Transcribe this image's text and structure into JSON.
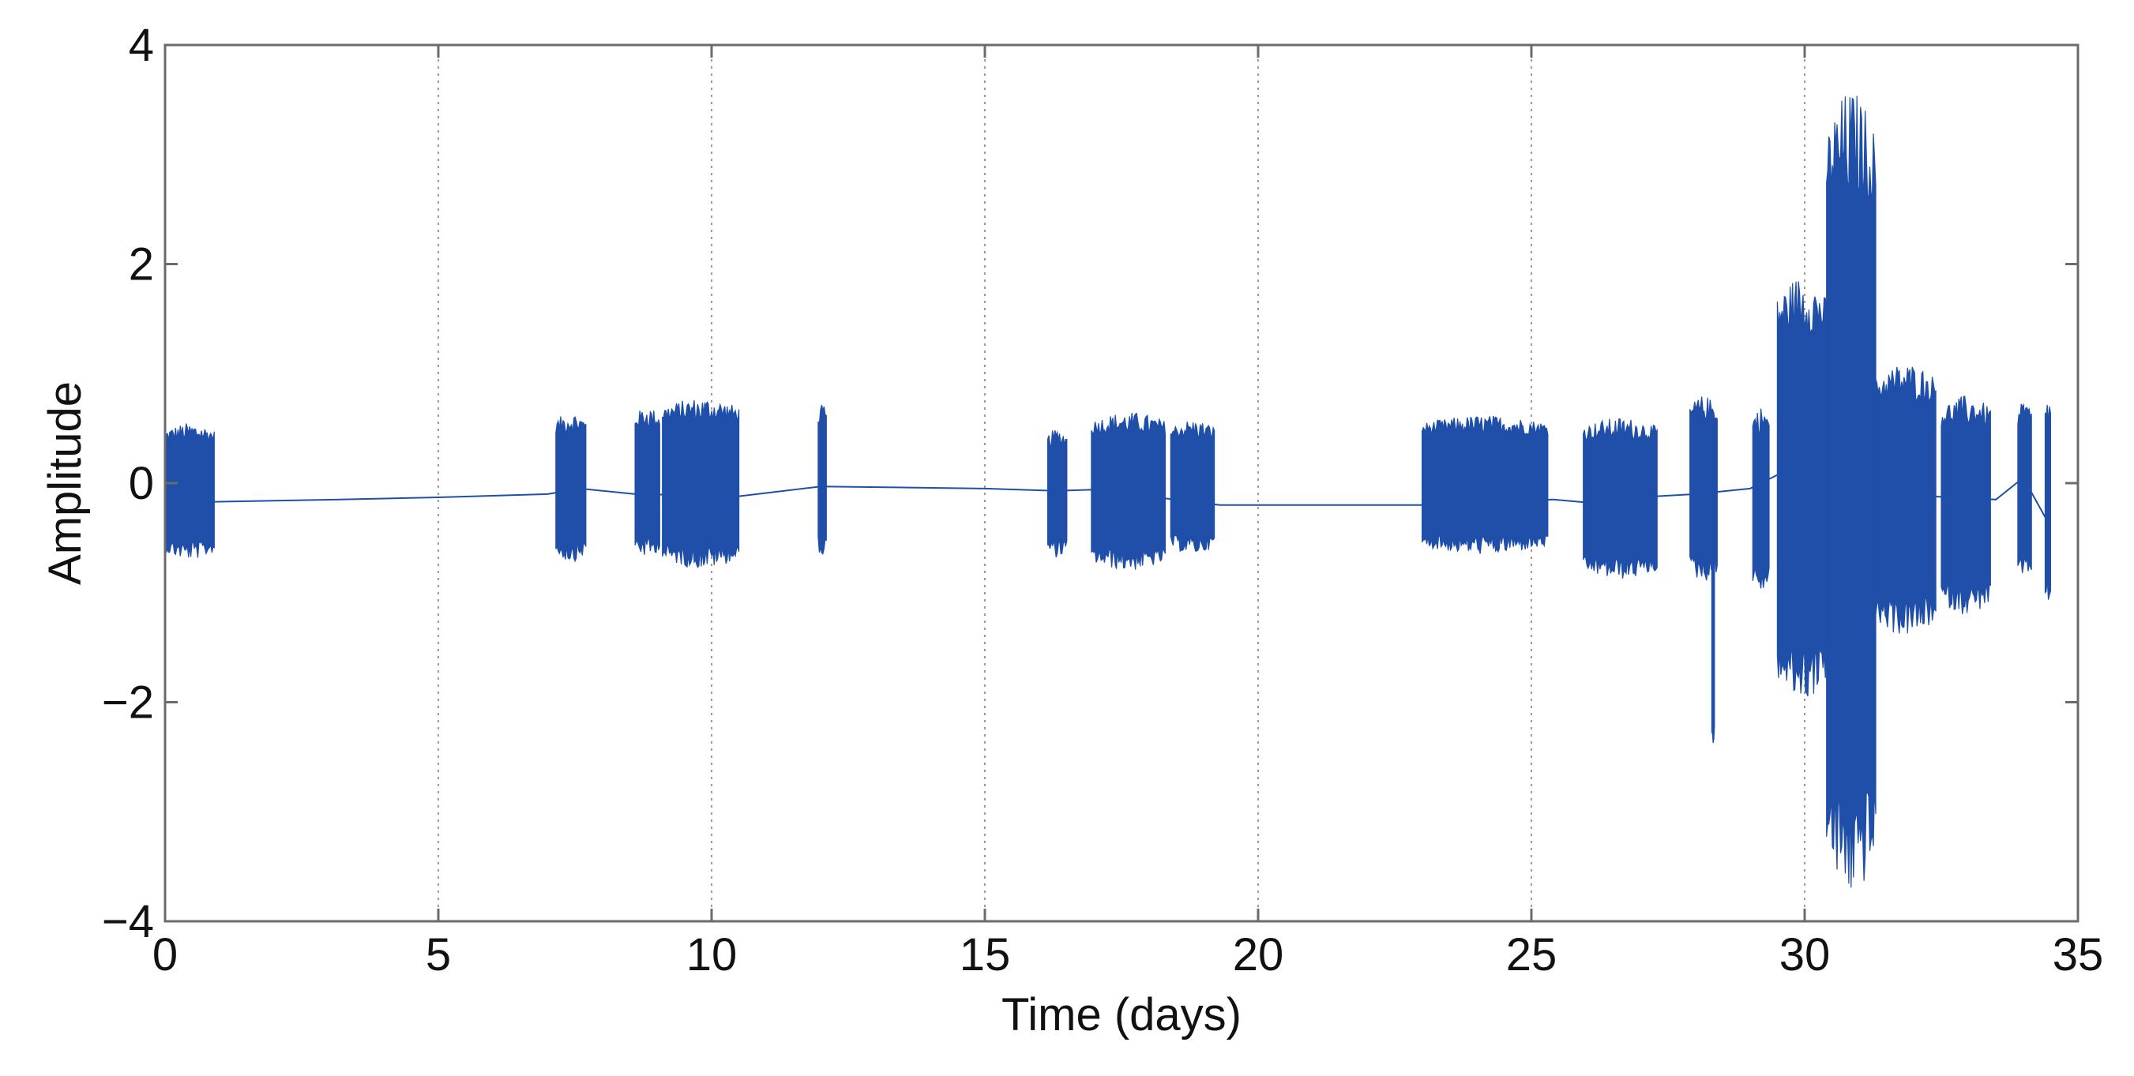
{
  "chart_data": {
    "type": "line",
    "xlabel": "Time (days)",
    "ylabel": "Amplitude",
    "xlim": [
      0,
      35
    ],
    "ylim": [
      -4,
      4
    ],
    "xticks": [
      0,
      5,
      10,
      15,
      20,
      25,
      30,
      35
    ],
    "yticks": [
      -4,
      -2,
      0,
      2,
      4
    ],
    "xtick_labels": [
      "0",
      "5",
      "10",
      "15",
      "20",
      "25",
      "30",
      "35"
    ],
    "ytick_labels": [
      "−4",
      "−2",
      "0",
      "2",
      "4"
    ],
    "grid": "vertical dotted",
    "series_color": "#1f4fa8",
    "series": [
      {
        "baseline": [
          [
            0.0,
            -0.17
          ],
          [
            0.9,
            -0.17
          ],
          [
            3.2,
            -0.15
          ],
          [
            5.0,
            -0.13
          ],
          [
            7.0,
            -0.1
          ],
          [
            7.6,
            -0.05
          ],
          [
            8.6,
            -0.1
          ],
          [
            10.5,
            -0.12
          ],
          [
            12.0,
            -0.03
          ],
          [
            15.0,
            -0.05
          ],
          [
            16.3,
            -0.07
          ],
          [
            17.0,
            -0.06
          ],
          [
            19.3,
            -0.2
          ],
          [
            23.0,
            -0.2
          ],
          [
            25.4,
            -0.15
          ],
          [
            26.1,
            -0.18
          ],
          [
            27.3,
            -0.12
          ],
          [
            28.0,
            -0.1
          ],
          [
            29.0,
            -0.05
          ],
          [
            30.0,
            0.2
          ],
          [
            31.5,
            -0.1
          ],
          [
            33.5,
            -0.15
          ],
          [
            34.0,
            0.05
          ],
          [
            34.5,
            -0.4
          ]
        ],
        "bursts": [
          {
            "start": 0.0,
            "end": 0.9,
            "max": 0.55,
            "min": -0.7
          },
          {
            "start": 7.15,
            "end": 7.7,
            "max": 0.65,
            "min": -0.72
          },
          {
            "start": 8.6,
            "end": 9.05,
            "max": 0.7,
            "min": -0.68
          },
          {
            "start": 9.1,
            "end": 10.5,
            "max": 0.78,
            "min": -0.78
          },
          {
            "start": 11.95,
            "end": 12.1,
            "max": 0.72,
            "min": -0.68
          },
          {
            "start": 16.15,
            "end": 16.5,
            "max": 0.5,
            "min": -0.68
          },
          {
            "start": 16.95,
            "end": 18.3,
            "max": 0.65,
            "min": -0.8
          },
          {
            "start": 18.4,
            "end": 19.2,
            "max": 0.58,
            "min": -0.65
          },
          {
            "start": 23.0,
            "end": 25.3,
            "max": 0.62,
            "min": -0.65
          },
          {
            "start": 25.95,
            "end": 27.3,
            "max": 0.6,
            "min": -0.88
          },
          {
            "start": 27.9,
            "end": 28.4,
            "max": 0.8,
            "min": -0.9
          },
          {
            "start": 28.3,
            "end": 28.35,
            "max": 0.2,
            "min": -2.5
          },
          {
            "start": 29.05,
            "end": 29.35,
            "max": 0.7,
            "min": -1.0
          },
          {
            "start": 29.5,
            "end": 30.4,
            "max": 1.9,
            "min": -2.0
          },
          {
            "start": 30.4,
            "end": 31.3,
            "max": 3.6,
            "min": -3.8
          },
          {
            "start": 31.3,
            "end": 32.4,
            "max": 1.1,
            "min": -1.4
          },
          {
            "start": 32.5,
            "end": 33.4,
            "max": 0.8,
            "min": -1.2
          },
          {
            "start": 33.9,
            "end": 34.15,
            "max": 0.75,
            "min": -0.9
          },
          {
            "start": 34.4,
            "end": 34.5,
            "max": 0.8,
            "min": -1.15
          }
        ]
      }
    ]
  }
}
